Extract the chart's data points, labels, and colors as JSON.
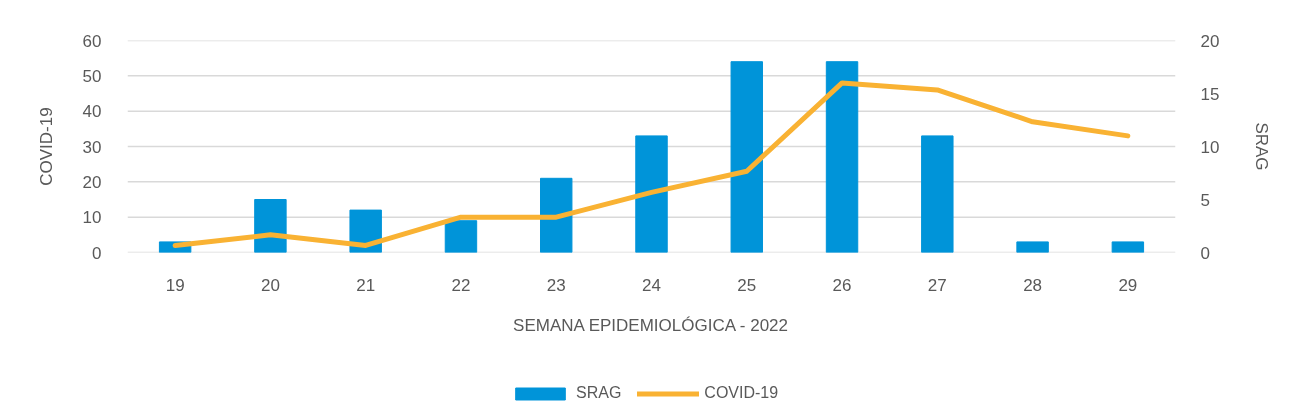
{
  "chart_data": {
    "type": "bar",
    "xlabel": "SEMANA EPIDEMIOLÓGICA - 2022",
    "ylabel": "COVID-19",
    "y2label": "SRAG",
    "categories": [
      "19",
      "20",
      "21",
      "22",
      "23",
      "24",
      "25",
      "26",
      "27",
      "28",
      "29"
    ],
    "series": [
      {
        "name": "SRAG",
        "axis": "y2",
        "color": "#0094d9",
        "values": [
          1,
          5,
          4,
          3,
          7,
          11,
          18,
          18,
          11,
          1,
          1
        ]
      },
      {
        "name": "COVID-19",
        "type": "line",
        "color": "#f9b233",
        "values": [
          2,
          5,
          2,
          10,
          10,
          17,
          23,
          48,
          46,
          37,
          33
        ]
      }
    ],
    "ylim": [
      0,
      60
    ],
    "yticks": [
      0,
      10,
      20,
      30,
      40,
      50,
      60
    ],
    "y2lim": [
      0,
      20
    ],
    "y2ticks": [
      0,
      5,
      10,
      15,
      20
    ],
    "grid": "y",
    "legend": "bottom"
  }
}
